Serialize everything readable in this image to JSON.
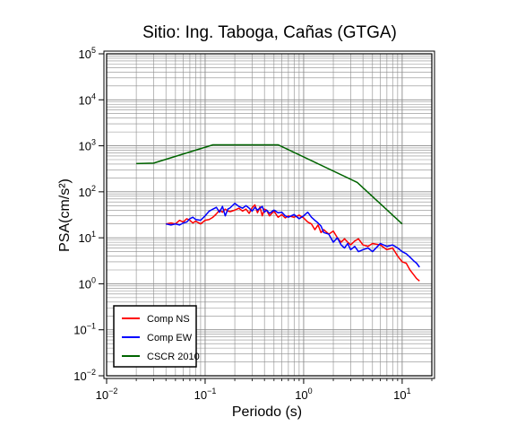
{
  "chart_data": {
    "type": "line",
    "title": "Sitio: Ing. Taboga, Cañas (GTGA)",
    "xlabel": "Periodo (s)",
    "ylabel": "PSA(cm/s²)",
    "x_scale": "log",
    "y_scale": "log",
    "xlim": [
      0.01,
      20
    ],
    "ylim": [
      0.01,
      100000
    ],
    "x_major_ticks": [
      {
        "value": 0.01,
        "base": "10",
        "exp": "−2"
      },
      {
        "value": 0.1,
        "base": "10",
        "exp": "−1"
      },
      {
        "value": 1,
        "base": "10",
        "exp": "0"
      },
      {
        "value": 10,
        "base": "10",
        "exp": "1"
      }
    ],
    "y_major_ticks": [
      {
        "value": 0.01,
        "base": "10",
        "exp": "−2"
      },
      {
        "value": 0.1,
        "base": "10",
        "exp": "−1"
      },
      {
        "value": 1,
        "base": "10",
        "exp": "0"
      },
      {
        "value": 10,
        "base": "10",
        "exp": "1"
      },
      {
        "value": 100,
        "base": "10",
        "exp": "2"
      },
      {
        "value": 1000,
        "base": "10",
        "exp": "3"
      },
      {
        "value": 10000,
        "base": "10",
        "exp": "4"
      },
      {
        "value": 100000,
        "base": "10",
        "exp": "5"
      }
    ],
    "grid": true,
    "legend_position": "bottom-left",
    "series": [
      {
        "name": "Comp NS",
        "color": "#ff0000",
        "points": [
          [
            0.04,
            20
          ],
          [
            0.045,
            21
          ],
          [
            0.05,
            20
          ],
          [
            0.055,
            24
          ],
          [
            0.06,
            22
          ],
          [
            0.065,
            26
          ],
          [
            0.07,
            24
          ],
          [
            0.075,
            21
          ],
          [
            0.08,
            23
          ],
          [
            0.09,
            20
          ],
          [
            0.1,
            24
          ],
          [
            0.11,
            25
          ],
          [
            0.12,
            28
          ],
          [
            0.13,
            33
          ],
          [
            0.14,
            40
          ],
          [
            0.15,
            36
          ],
          [
            0.16,
            42
          ],
          [
            0.17,
            38
          ],
          [
            0.18,
            37
          ],
          [
            0.2,
            40
          ],
          [
            0.22,
            44
          ],
          [
            0.24,
            38
          ],
          [
            0.26,
            42
          ],
          [
            0.28,
            34
          ],
          [
            0.3,
            45
          ],
          [
            0.32,
            52
          ],
          [
            0.34,
            35
          ],
          [
            0.36,
            47
          ],
          [
            0.38,
            30
          ],
          [
            0.4,
            42
          ],
          [
            0.42,
            40
          ],
          [
            0.45,
            30
          ],
          [
            0.5,
            38
          ],
          [
            0.55,
            28
          ],
          [
            0.6,
            32
          ],
          [
            0.65,
            27
          ],
          [
            0.7,
            30
          ],
          [
            0.8,
            28
          ],
          [
            0.9,
            31
          ],
          [
            1.0,
            27
          ],
          [
            1.1,
            22
          ],
          [
            1.2,
            20
          ],
          [
            1.3,
            15
          ],
          [
            1.4,
            19
          ],
          [
            1.5,
            13
          ],
          [
            1.6,
            15
          ],
          [
            1.8,
            12
          ],
          [
            2.0,
            14
          ],
          [
            2.2,
            10
          ],
          [
            2.4,
            8
          ],
          [
            2.6,
            9.5
          ],
          [
            2.8,
            8
          ],
          [
            3.0,
            7
          ],
          [
            3.3,
            8.5
          ],
          [
            3.6,
            9.5
          ],
          [
            4.0,
            7
          ],
          [
            4.5,
            6.5
          ],
          [
            5.0,
            7.5
          ],
          [
            6.0,
            7
          ],
          [
            7.0,
            5.5
          ],
          [
            8.0,
            6
          ],
          [
            9.0,
            4
          ],
          [
            10.0,
            3
          ],
          [
            11.0,
            2.8
          ],
          [
            12.0,
            2
          ],
          [
            13.0,
            1.6
          ],
          [
            14.0,
            1.3
          ],
          [
            15.0,
            1.15
          ]
        ]
      },
      {
        "name": "Comp EW",
        "color": "#0000ff",
        "points": [
          [
            0.04,
            20
          ],
          [
            0.045,
            19
          ],
          [
            0.05,
            20
          ],
          [
            0.055,
            19
          ],
          [
            0.06,
            21
          ],
          [
            0.065,
            22
          ],
          [
            0.07,
            26
          ],
          [
            0.075,
            28
          ],
          [
            0.08,
            25
          ],
          [
            0.09,
            24
          ],
          [
            0.1,
            30
          ],
          [
            0.11,
            38
          ],
          [
            0.12,
            42
          ],
          [
            0.13,
            46
          ],
          [
            0.14,
            36
          ],
          [
            0.15,
            48
          ],
          [
            0.16,
            30
          ],
          [
            0.17,
            42
          ],
          [
            0.18,
            45
          ],
          [
            0.2,
            56
          ],
          [
            0.22,
            48
          ],
          [
            0.24,
            44
          ],
          [
            0.26,
            50
          ],
          [
            0.28,
            44
          ],
          [
            0.3,
            38
          ],
          [
            0.32,
            46
          ],
          [
            0.34,
            40
          ],
          [
            0.36,
            44
          ],
          [
            0.38,
            48
          ],
          [
            0.4,
            36
          ],
          [
            0.42,
            40
          ],
          [
            0.45,
            34
          ],
          [
            0.5,
            40
          ],
          [
            0.55,
            35
          ],
          [
            0.6,
            36
          ],
          [
            0.65,
            30
          ],
          [
            0.7,
            28
          ],
          [
            0.8,
            32
          ],
          [
            0.9,
            26
          ],
          [
            1.0,
            30
          ],
          [
            1.1,
            36
          ],
          [
            1.2,
            28
          ],
          [
            1.3,
            24
          ],
          [
            1.4,
            21
          ],
          [
            1.5,
            18
          ],
          [
            1.6,
            13
          ],
          [
            1.8,
            12
          ],
          [
            2.0,
            8
          ],
          [
            2.2,
            10
          ],
          [
            2.4,
            7
          ],
          [
            2.6,
            6
          ],
          [
            2.8,
            7.5
          ],
          [
            3.0,
            5.5
          ],
          [
            3.3,
            6.5
          ],
          [
            3.6,
            5
          ],
          [
            4.0,
            5.5
          ],
          [
            4.5,
            6
          ],
          [
            5.0,
            5
          ],
          [
            6.0,
            7.5
          ],
          [
            7.0,
            6.5
          ],
          [
            8.0,
            7
          ],
          [
            9.0,
            6
          ],
          [
            10.0,
            5
          ],
          [
            11.0,
            4.5
          ],
          [
            12.0,
            3.8
          ],
          [
            13.0,
            3.2
          ],
          [
            14.0,
            2.8
          ],
          [
            15.0,
            2.3
          ]
        ]
      },
      {
        "name": "CSCR 2010",
        "color": "#006400",
        "points": [
          [
            0.02,
            410
          ],
          [
            0.03,
            420
          ],
          [
            0.12,
            1050
          ],
          [
            0.55,
            1050
          ],
          [
            3.5,
            160
          ],
          [
            10.0,
            20
          ]
        ]
      }
    ]
  }
}
